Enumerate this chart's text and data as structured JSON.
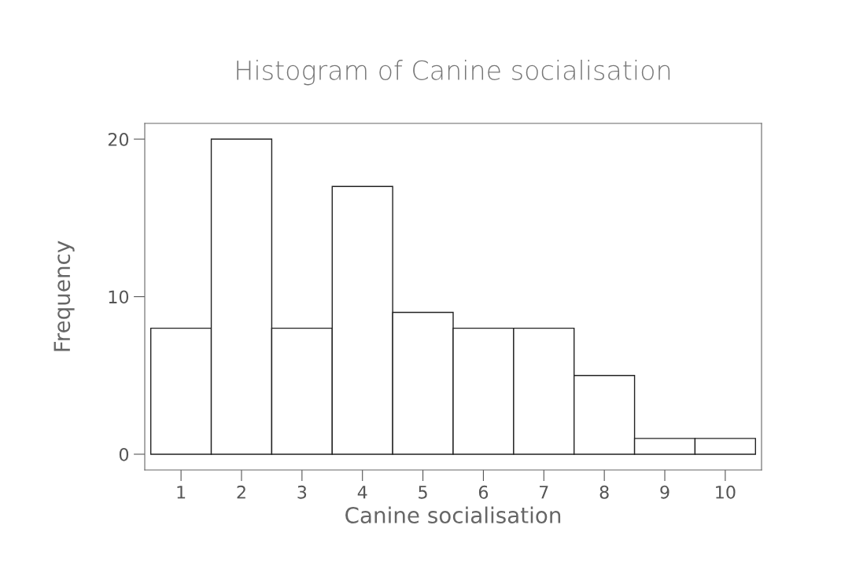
{
  "chart_data": {
    "type": "histogram",
    "title": "Histogram of Canine socialisation",
    "xlabel": "Canine socialisation",
    "ylabel": "Frequency",
    "bins": [
      0.5,
      1.5,
      2.5,
      3.5,
      4.5,
      5.5,
      6.5,
      7.5,
      8.5,
      9.5,
      10.5
    ],
    "values": [
      8,
      20,
      8,
      17,
      9,
      8,
      8,
      5,
      1,
      1
    ],
    "color": "#ffffff",
    "xlim": [
      0.4,
      10.6
    ],
    "ylim": [
      -1,
      21
    ],
    "xticks": [
      1,
      2,
      3,
      4,
      5,
      6,
      7,
      8,
      9,
      10
    ],
    "yticks": [
      0,
      10,
      20
    ],
    "grid": false
  }
}
